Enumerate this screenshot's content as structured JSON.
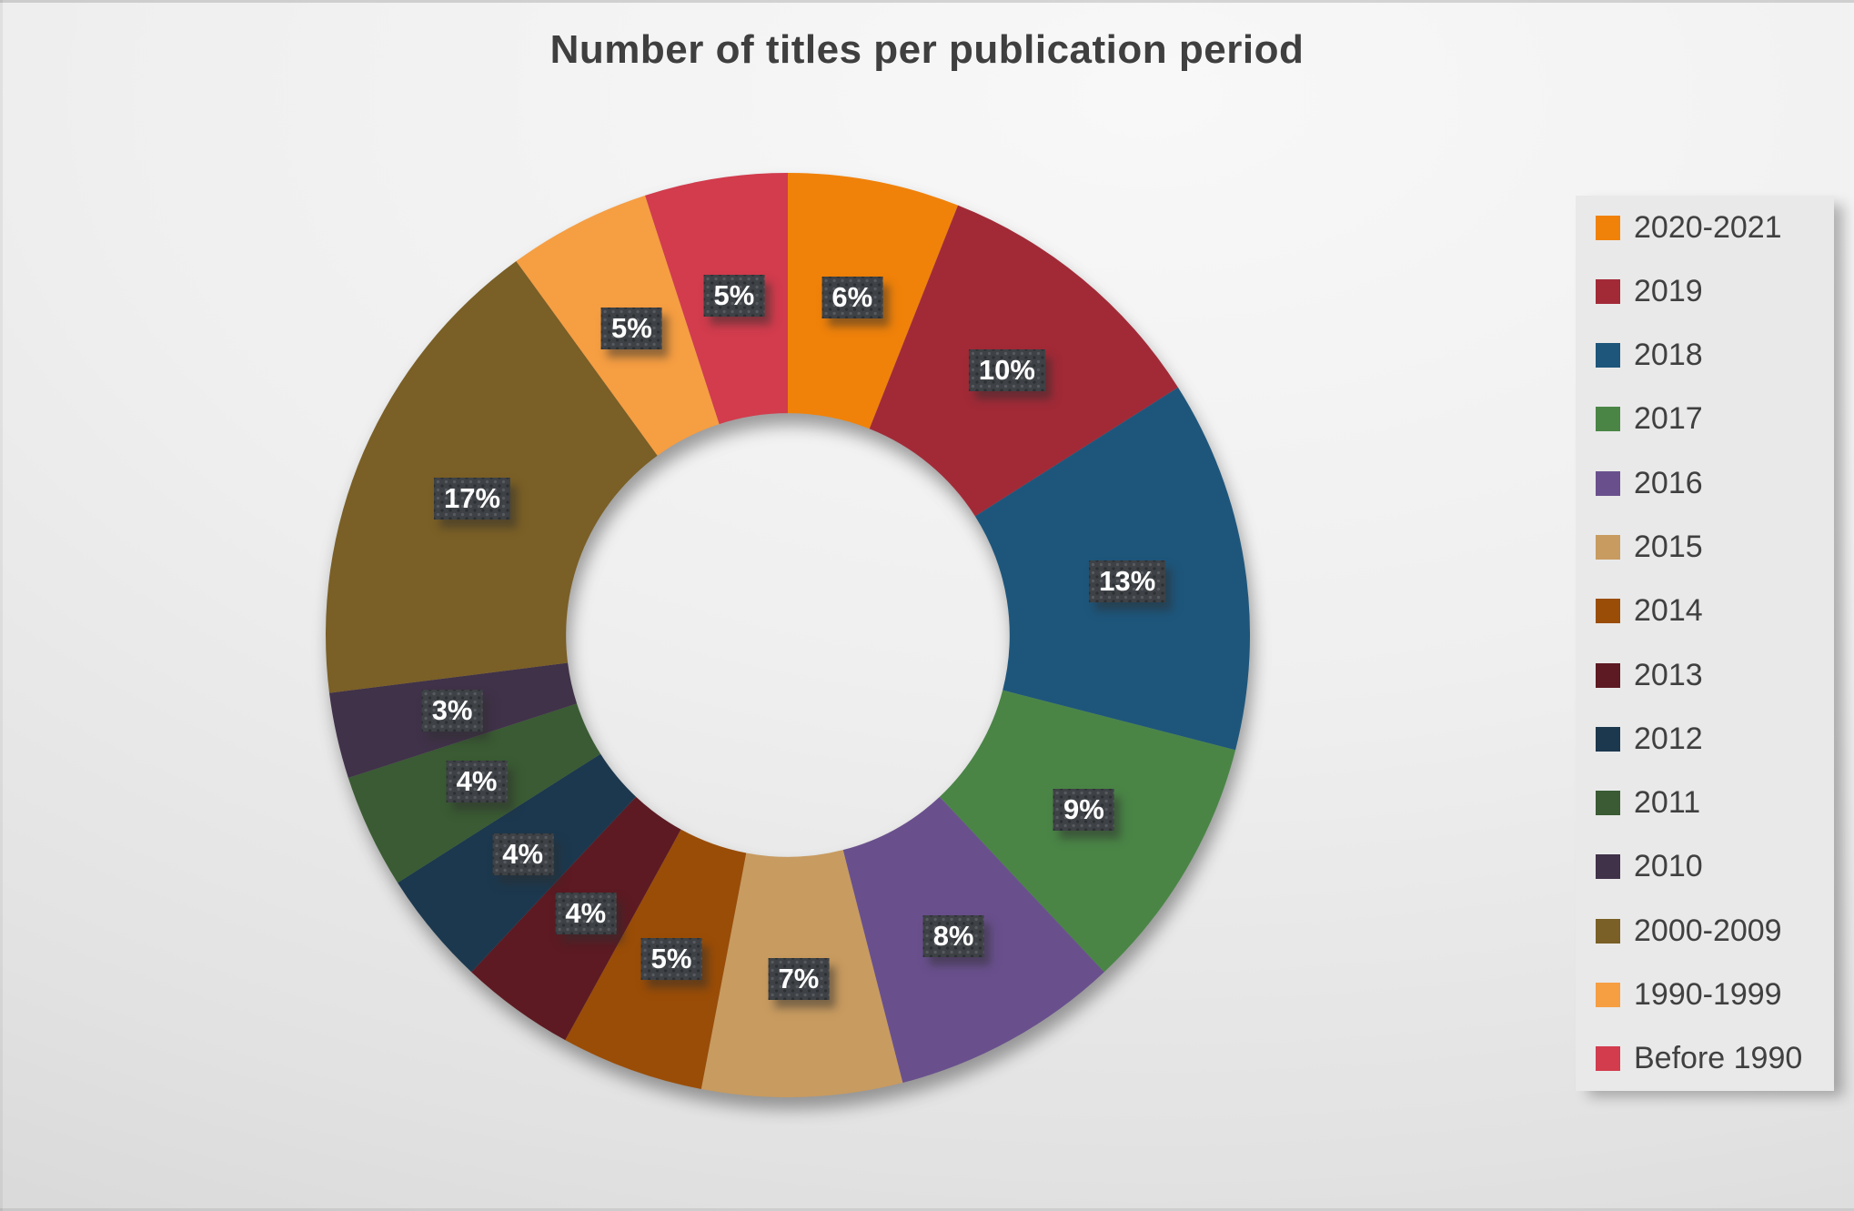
{
  "chart_data": {
    "type": "pie",
    "subtype": "donut",
    "title": "Number of titles per publication period",
    "legend_position": "right",
    "categories": [
      "2020-2021",
      "2019",
      "2018",
      "2017",
      "2016",
      "2015",
      "2014",
      "2013",
      "2012",
      "2011",
      "2010",
      "2000-2009",
      "1990-1999",
      "Before 1990"
    ],
    "values": [
      6,
      10,
      13,
      9,
      8,
      7,
      5,
      4,
      4,
      4,
      3,
      17,
      5,
      5
    ],
    "labels": [
      "6%",
      "10%",
      "13%",
      "9%",
      "8%",
      "7%",
      "5%",
      "4%",
      "4%",
      "4%",
      "3%",
      "17%",
      "5%",
      "5%"
    ],
    "colors": [
      "#F0820A",
      "#A22A37",
      "#1E567B",
      "#4A8546",
      "#69508D",
      "#C89B60",
      "#9A4D07",
      "#5D1A22",
      "#1C384E",
      "#3A5B33",
      "#403249",
      "#7A5F26",
      "#F69E42",
      "#D23C4D"
    ],
    "label_text_color": "#FFFFFF",
    "label_box_color": "#3E4246",
    "title_color": "#3F3F3F",
    "legend_text_color": "#404040"
  }
}
